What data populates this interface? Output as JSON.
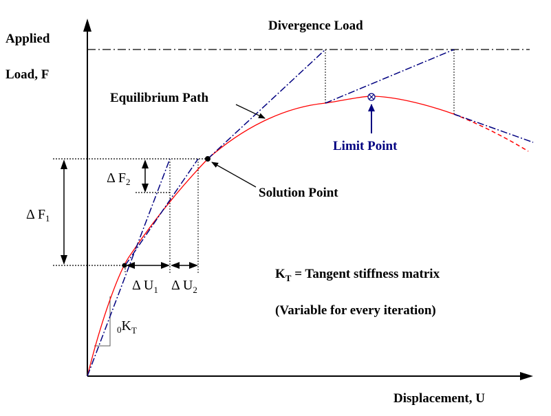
{
  "axes": {
    "y_label_line1": "Applied",
    "y_label_line2": "Load, F",
    "x_label": "Displacement, U"
  },
  "labels": {
    "divergence_load": "Divergence Load",
    "equilibrium_path": "Equilibrium Path",
    "limit_point": "Limit Point",
    "solution_point": "Solution Point"
  },
  "symbols": {
    "delta": "Δ",
    "F": "F",
    "U": "U",
    "K": "K",
    "T": "T",
    "sub_1": "1",
    "sub_2": "2",
    "sub_0": "0"
  },
  "definition": {
    "kt_rest": " = Tangent stiffness matrix",
    "note": "(Variable for every iteration)"
  },
  "colors": {
    "curve": "#ff0000",
    "tangent": "#000080",
    "limit_label": "#000080",
    "axis": "#000000"
  }
}
